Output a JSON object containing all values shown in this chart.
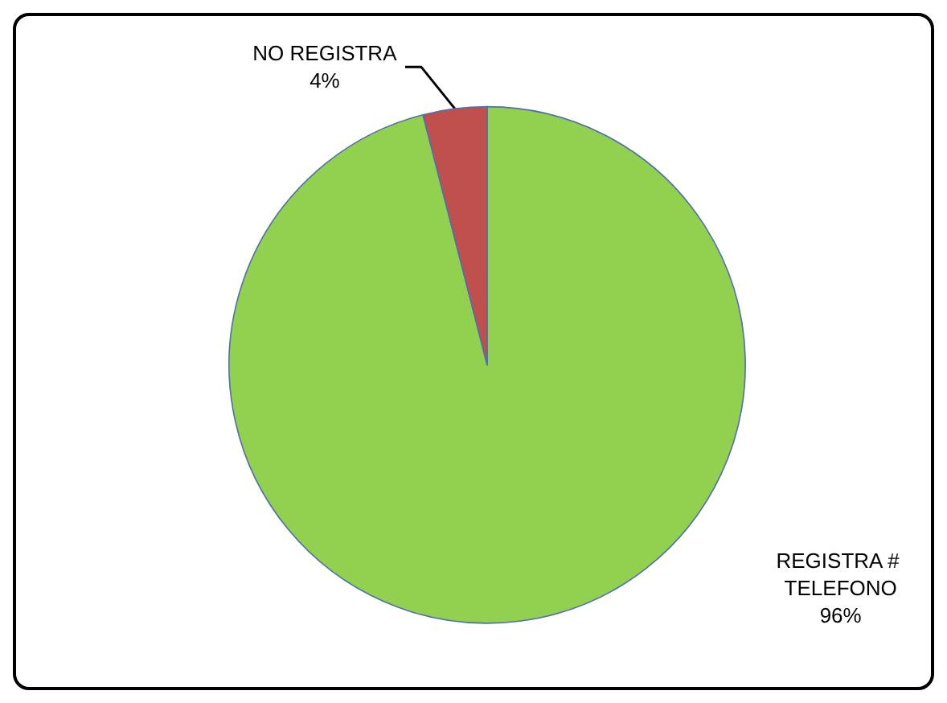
{
  "chart_data": {
    "type": "pie",
    "categories": [
      "REGISTRA # TELEFONO",
      "NO REGISTRA"
    ],
    "values": [
      96,
      4
    ],
    "colors": [
      "#92d050",
      "#c0504d"
    ],
    "value_labels": [
      "96%",
      "4%"
    ],
    "legend": false
  }
}
